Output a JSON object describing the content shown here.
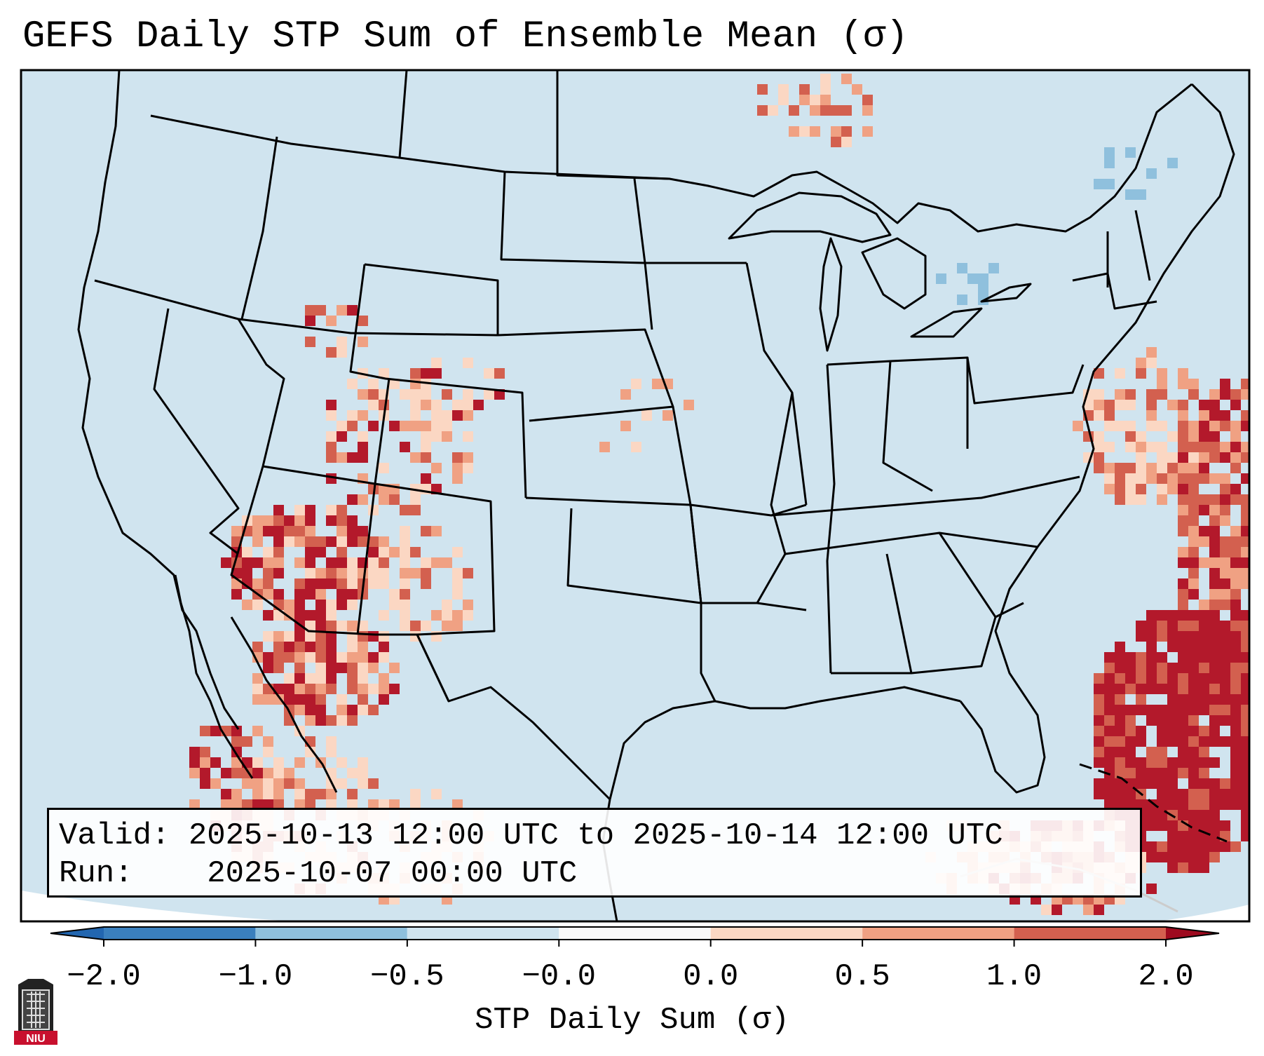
{
  "title": "GEFS Daily STP Sum of Ensemble Mean (σ)",
  "info": {
    "valid_label": "Valid:",
    "valid_value": "2025-10-13 12:00 UTC to 2025-10-14 12:00 UTC",
    "run_label": "Run:",
    "run_value": "2025-10-07 00:00 UTC"
  },
  "colorbar": {
    "title": "STP Daily Sum (σ)",
    "ticks": [
      "−2.0",
      "−1.0",
      "−0.5",
      "−0.0",
      "0.0",
      "0.5",
      "1.0",
      "2.0"
    ],
    "colors": [
      "#3a7fbd",
      "#8fc0dd",
      "#d0e4ef",
      "#f8f8f8",
      "#fbd7c3",
      "#f0a183",
      "#d3604f",
      "#b3192b"
    ],
    "extend_low_color": "#2266b0",
    "extend_high_color": "#9e0a1f"
  },
  "map": {
    "background_color": "#d0e4ef",
    "out_of_domain_color": "#ffffff",
    "border_color": "#000000",
    "regions": [
      {
        "name": "Southwest US / Arizona–Utah",
        "sigma_range": "0.5–2.0"
      },
      {
        "name": "Colorado / Wyoming",
        "sigma_range": "0.0–2.0"
      },
      {
        "name": "Northwestern Mexico",
        "sigma_range": "0.5–2.0"
      },
      {
        "name": "Western Atlantic / Bahamas",
        "sigma_range": "1.0–2.0"
      },
      {
        "name": "Great Lakes / Northeast",
        "sigma_range": "−1.0–−0.5"
      }
    ]
  },
  "logo": {
    "text": "NIU"
  }
}
